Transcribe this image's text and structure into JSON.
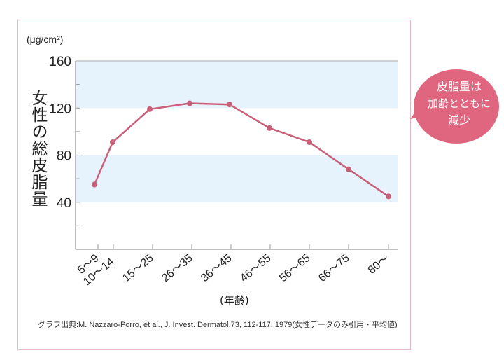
{
  "chart_data": {
    "type": "line",
    "unit_label": "(μg/cm²)",
    "ylabel": "女性の総皮脂量",
    "xlabel": "(年齢)",
    "categories": [
      "5〜9",
      "10〜14",
      "15〜25",
      "26〜35",
      "36〜45",
      "46〜55",
      "56〜65",
      "66〜75",
      "80〜"
    ],
    "values": [
      55,
      91,
      119,
      124,
      123,
      103,
      91,
      68,
      45
    ],
    "ylim": [
      0,
      160
    ],
    "yticks": [
      40,
      80,
      120,
      160
    ],
    "grid": "alternating light blue bands",
    "line_color": "#c8607a",
    "band_color": "#e6f3fc"
  },
  "callout": {
    "lines": [
      "皮脂量は",
      "加齢とともに",
      "減少"
    ],
    "color": "#e0667f"
  },
  "source": "グラフ出典:M. Nazzaro-Porro, et al., J. Invest. Dermatol.73, 112-117, 1979(女性データのみ引用・平均値)"
}
